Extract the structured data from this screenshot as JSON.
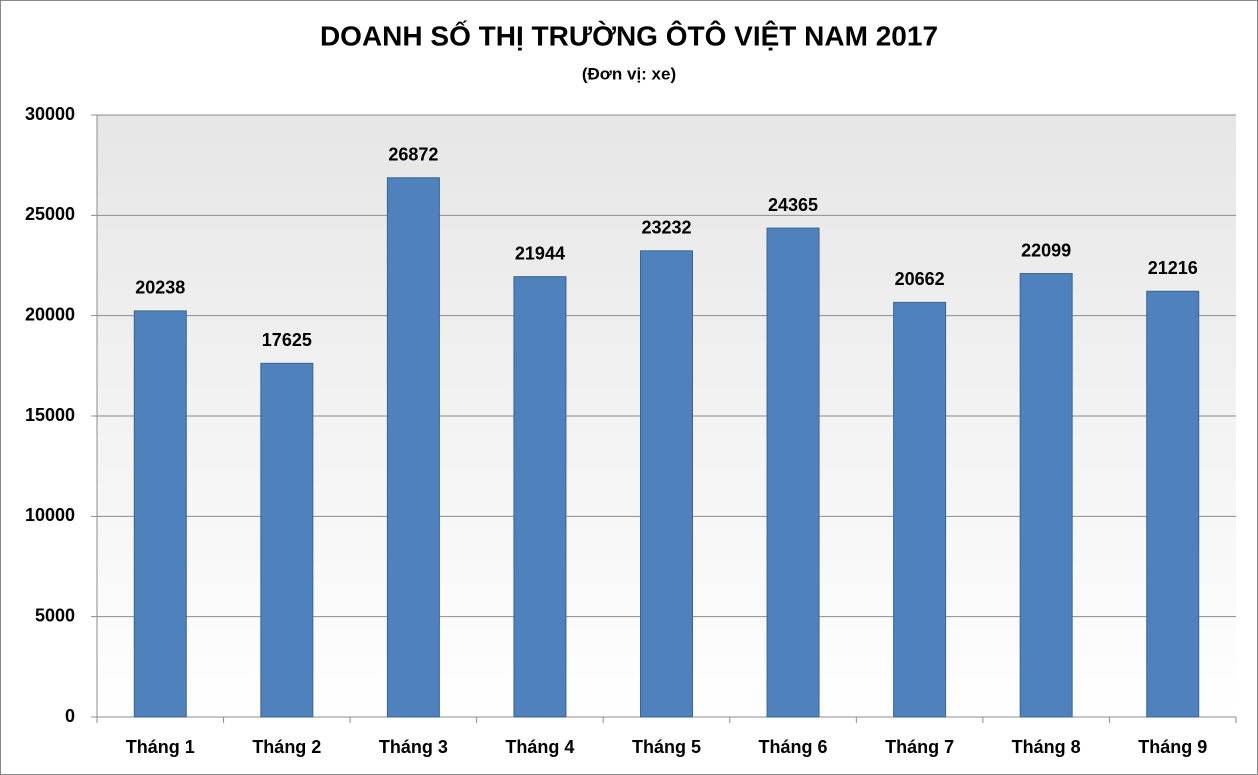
{
  "chart_data": {
    "type": "bar",
    "title": "DOANH SỐ THỊ TRƯỜNG ÔTÔ VIỆT NAM 2017",
    "subtitle": "(Đơn vị: xe)",
    "categories": [
      "Tháng 1",
      "Tháng 2",
      "Tháng 3",
      "Tháng 4",
      "Tháng 5",
      "Tháng 6",
      "Tháng 7",
      "Tháng 8",
      "Tháng 9"
    ],
    "values": [
      20238,
      17625,
      26872,
      21944,
      23232,
      24365,
      20662,
      22099,
      21216
    ],
    "color": "#4f81bd",
    "ylim": [
      0,
      30000
    ],
    "yticks": [
      0,
      5000,
      10000,
      15000,
      20000,
      25000,
      30000
    ],
    "grid": true
  }
}
